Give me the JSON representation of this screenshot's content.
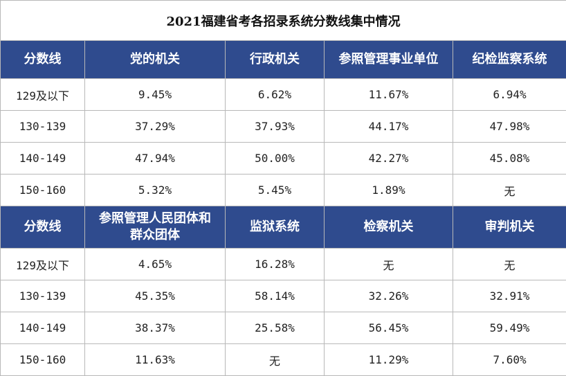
{
  "title": "2021福建省考各招录系统分数线集中情况",
  "tables": [
    {
      "header": [
        "分数线",
        "党的机关",
        "行政机关",
        "参照管理事业单位",
        "纪检监察系统"
      ],
      "rows": [
        [
          "129及以下",
          "9.45%",
          "6.62%",
          "11.67%",
          "6.94%"
        ],
        [
          "130-139",
          "37.29%",
          "37.93%",
          "44.17%",
          "47.98%"
        ],
        [
          "140-149",
          "47.94%",
          "50.00%",
          "42.27%",
          "45.08%"
        ],
        [
          "150-160",
          "5.32%",
          "5.45%",
          "1.89%",
          "无"
        ]
      ]
    },
    {
      "header": [
        "分数线",
        "参照管理人民团体和群众团体",
        "监狱系统",
        "检察机关",
        "审判机关"
      ],
      "rows": [
        [
          "129及以下",
          "4.65%",
          "16.28%",
          "无",
          "无"
        ],
        [
          "130-139",
          "45.35%",
          "58.14%",
          "32.26%",
          "32.91%"
        ],
        [
          "140-149",
          "38.37%",
          "25.58%",
          "56.45%",
          "59.49%"
        ],
        [
          "150-160",
          "11.63%",
          "无",
          "11.29%",
          "7.60%"
        ]
      ]
    }
  ]
}
